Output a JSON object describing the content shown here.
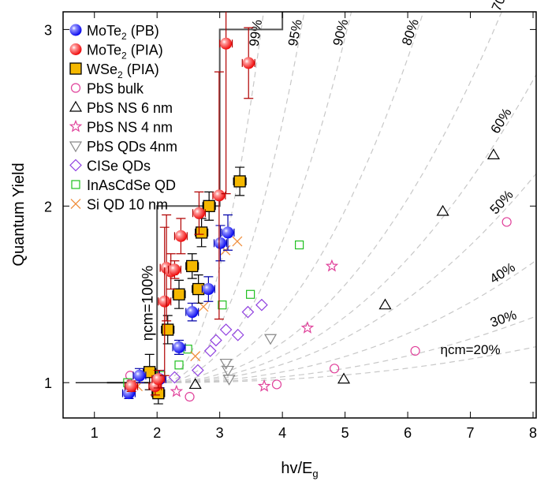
{
  "chart_data": {
    "type": "scatter",
    "xlabel": "hv/E",
    "xlabel_sub": "g",
    "ylabel": "Quantum Yield",
    "xlim": [
      0.5,
      8.05
    ],
    "ylim": [
      0.8,
      3.1
    ],
    "xticks": [
      1,
      2,
      3,
      4,
      5,
      6,
      7,
      8
    ],
    "yticks": [
      1,
      2,
      3
    ],
    "grid": false,
    "legend_placement": "top-left",
    "efficiency_curves": [
      {
        "label": "ηcm=20%",
        "eta": 0.2,
        "anchor": [
          8.0,
          1.2
        ]
      },
      {
        "label": "30%",
        "eta": 0.3,
        "anchor": [
          8.0,
          1.37
        ]
      },
      {
        "label": "40%",
        "eta": 0.4,
        "anchor": [
          8.0,
          1.68
        ]
      },
      {
        "label": "50%",
        "eta": 0.5,
        "anchor": [
          7.9,
          2.12
        ]
      },
      {
        "label": "60%",
        "eta": 0.6,
        "anchor": [
          7.85,
          2.62
        ]
      },
      {
        "label": "70%",
        "eta": 0.7,
        "anchor": [
          7.5,
          3.1
        ]
      },
      {
        "label": "80%",
        "eta": 0.8,
        "anchor": [
          6.25,
          3.1
        ]
      },
      {
        "label": "90%",
        "eta": 0.9,
        "anchor": [
          5.1,
          3.1
        ]
      },
      {
        "label": "95%",
        "eta": 0.95,
        "anchor": [
          4.35,
          3.1
        ]
      },
      {
        "label": "99%",
        "eta": 0.99,
        "anchor": [
          3.7,
          3.1
        ]
      }
    ],
    "staircase": {
      "label": "ηcm=100%",
      "steps": [
        [
          1.2,
          1
        ],
        [
          2,
          1
        ],
        [
          2,
          2
        ],
        [
          3,
          2
        ],
        [
          3,
          3
        ],
        [
          4,
          3
        ],
        [
          4,
          3.1
        ]
      ]
    },
    "series": [
      {
        "name": "MoTe",
        "sub": "2",
        "suffix": " (PB)",
        "marker": "ball",
        "color": "#0000ee",
        "points": [
          [
            1.55,
            0.94,
            0.03
          ],
          [
            1.72,
            1.04,
            0.04
          ],
          [
            2.04,
            1.02,
            0.05
          ],
          [
            2.35,
            1.2,
            0.04
          ],
          [
            2.56,
            1.4,
            0.05
          ],
          [
            2.82,
            1.53,
            0.07
          ],
          [
            3.01,
            1.79,
            0.1
          ],
          [
            3.13,
            1.85,
            0.1
          ]
        ]
      },
      {
        "name": "MoTe",
        "sub": "2",
        "suffix": " (PIA)",
        "marker": "ball",
        "color": "#ee0000",
        "points": [
          [
            1.59,
            0.98,
            0.03
          ],
          [
            1.97,
            0.98,
            0.05
          ],
          [
            2.02,
            1.02,
            0.05
          ],
          [
            2.12,
            1.46,
            0.42
          ],
          [
            2.15,
            1.65,
            0.3
          ],
          [
            2.22,
            1.63,
            0.1
          ],
          [
            2.28,
            1.64,
            0.05
          ],
          [
            2.38,
            1.83,
            0.1
          ],
          [
            2.67,
            1.96,
            0.12
          ],
          [
            2.99,
            2.06,
            0.7
          ],
          [
            3.1,
            2.92,
            0.85
          ],
          [
            3.46,
            2.81,
            0.2
          ]
        ]
      },
      {
        "name": "WSe",
        "sub": "2",
        "suffix": " (PIA)",
        "marker": "square",
        "color": "#f5b800",
        "points": [
          [
            1.88,
            1.06,
            0.1
          ],
          [
            2.02,
            0.94,
            0.06
          ],
          [
            2.17,
            1.3,
            0.08
          ],
          [
            2.35,
            1.5,
            0.08
          ],
          [
            2.56,
            1.66,
            0.07
          ],
          [
            2.66,
            1.53,
            0.08
          ],
          [
            2.71,
            1.85,
            0.08
          ],
          [
            2.83,
            2.0,
            0.08
          ],
          [
            3.32,
            2.14,
            0.08
          ]
        ]
      },
      {
        "name": "PbS bulk",
        "marker": "circle",
        "color": "#e0409a",
        "points": [
          [
            1.57,
            1.04
          ],
          [
            2.52,
            0.92
          ],
          [
            3.91,
            0.99
          ],
          [
            4.83,
            1.08
          ],
          [
            6.12,
            1.18
          ],
          [
            7.58,
            1.91
          ]
        ]
      },
      {
        "name": "PbS NS 6 nm",
        "marker": "triangle",
        "color": "#000000",
        "points": [
          [
            2.61,
            0.99
          ],
          [
            4.98,
            1.02
          ],
          [
            5.64,
            1.44
          ],
          [
            6.56,
            1.97
          ],
          [
            7.37,
            2.29
          ]
        ]
      },
      {
        "name": "PbS NS 4 nm",
        "marker": "star",
        "color": "#e0409a",
        "points": [
          [
            2.31,
            0.95
          ],
          [
            3.71,
            0.98
          ],
          [
            4.4,
            1.31
          ],
          [
            4.79,
            1.66
          ]
        ]
      },
      {
        "name": "PbS QDs 4nm",
        "marker": "invtriangle",
        "color": "#888888",
        "points": [
          [
            3.1,
            1.11
          ],
          [
            3.13,
            1.07
          ],
          [
            3.15,
            1.02
          ],
          [
            3.81,
            1.25
          ]
        ]
      },
      {
        "name": "CISe QDs",
        "marker": "diamond",
        "color": "#9040e0",
        "points": [
          [
            2.28,
            1.03
          ],
          [
            2.65,
            1.07
          ],
          [
            2.85,
            1.18
          ],
          [
            2.94,
            1.24
          ],
          [
            3.1,
            1.3
          ],
          [
            3.29,
            1.27
          ],
          [
            3.45,
            1.4
          ],
          [
            3.67,
            1.44
          ]
        ]
      },
      {
        "name": "InAsCdSe QD",
        "marker": "square-open",
        "color": "#20c020",
        "points": [
          [
            1.53,
            1.0
          ],
          [
            2.06,
            1.04
          ],
          [
            2.35,
            1.1
          ],
          [
            2.49,
            1.19
          ],
          [
            3.04,
            1.44
          ],
          [
            3.49,
            1.5
          ],
          [
            4.27,
            1.78
          ]
        ]
      },
      {
        "name": "Si QD 10 nm",
        "marker": "cross",
        "color": "#f09040",
        "points": [
          [
            1.69,
            0.98
          ],
          [
            2.61,
            1.15
          ],
          [
            2.74,
            1.43
          ],
          [
            3.09,
            1.75
          ],
          [
            3.28,
            1.8
          ]
        ]
      }
    ]
  }
}
